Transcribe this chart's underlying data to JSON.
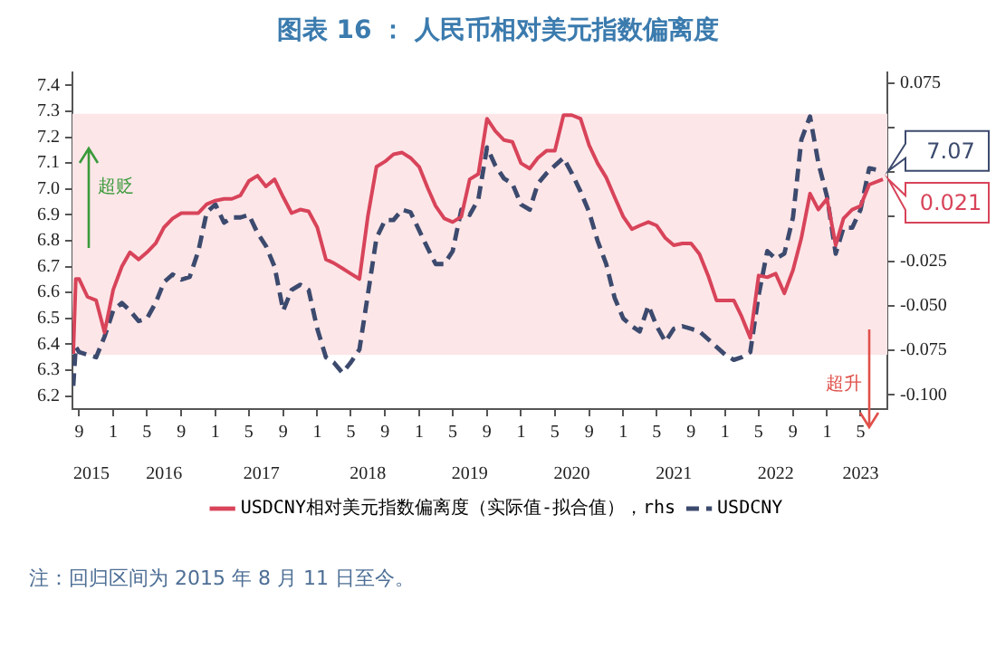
{
  "chart_data": {
    "type": "line",
    "title": "图表 16 ： 人民币相对美元指数偏离度",
    "x": [
      "2015-08-11",
      "2015-08-20",
      "2015-09",
      "2015-10",
      "2015-11",
      "2015-12",
      "2016-01",
      "2016-02",
      "2016-03",
      "2016-04",
      "2016-05",
      "2016-06",
      "2016-07",
      "2016-08",
      "2016-09",
      "2016-10",
      "2016-11",
      "2016-12",
      "2017-01",
      "2017-02",
      "2017-03",
      "2017-04",
      "2017-05",
      "2017-06",
      "2017-07",
      "2017-08",
      "2017-09",
      "2017-10",
      "2017-11",
      "2017-12",
      "2018-01",
      "2018-02",
      "2018-03",
      "2018-04",
      "2018-05",
      "2018-06",
      "2018-07",
      "2018-08",
      "2018-09",
      "2018-10",
      "2018-11",
      "2018-12",
      "2019-01",
      "2019-02",
      "2019-03",
      "2019-04",
      "2019-05",
      "2019-06",
      "2019-07",
      "2019-08",
      "2019-09",
      "2019-10",
      "2019-11",
      "2019-12",
      "2020-01",
      "2020-02",
      "2020-03",
      "2020-04",
      "2020-05",
      "2020-06",
      "2020-07",
      "2020-08",
      "2020-09",
      "2020-10",
      "2020-11",
      "2020-12",
      "2021-01",
      "2021-02",
      "2021-03",
      "2021-04",
      "2021-05",
      "2021-06",
      "2021-07",
      "2021-08",
      "2021-09",
      "2021-10",
      "2021-11",
      "2021-12",
      "2022-01",
      "2022-02",
      "2022-03",
      "2022-04",
      "2022-05",
      "2022-06",
      "2022-07",
      "2022-08",
      "2022-09",
      "2022-10",
      "2022-11",
      "2022-12",
      "2023-01",
      "2023-02",
      "2023-03",
      "2023-04",
      "2023-05",
      "2023-06",
      "2023-07-20"
    ],
    "series": [
      {
        "name": "USDCNY相对美元指数偏离度（实际值-拟合值），rhs",
        "color": "#d8445a",
        "axis": "y2",
        "line_style": "solid",
        "values": [
          -0.077,
          -0.035,
          -0.035,
          -0.045,
          -0.047,
          -0.065,
          -0.041,
          -0.028,
          -0.02,
          -0.024,
          -0.02,
          -0.015,
          -0.006,
          -0.001,
          0.002,
          0.002,
          0.002,
          0.007,
          0.009,
          0.01,
          0.01,
          0.012,
          0.02,
          0.023,
          0.017,
          0.021,
          0.011,
          0.002,
          0.004,
          0.003,
          -0.006,
          -0.024,
          -0.026,
          -0.029,
          -0.032,
          -0.035,
          0.0,
          0.028,
          0.031,
          0.035,
          0.036,
          0.033,
          0.028,
          0.016,
          0.006,
          -0.001,
          -0.003,
          0.0,
          0.021,
          0.024,
          0.055,
          0.048,
          0.043,
          0.042,
          0.03,
          0.027,
          0.033,
          0.037,
          0.037,
          0.057,
          0.057,
          0.055,
          0.04,
          0.03,
          0.022,
          0.011,
          0.0,
          -0.007,
          -0.005,
          -0.003,
          -0.005,
          -0.012,
          -0.016,
          -0.015,
          -0.015,
          -0.021,
          -0.033,
          -0.047,
          -0.047,
          -0.047,
          -0.056,
          -0.068,
          -0.033,
          -0.034,
          -0.032,
          -0.043,
          -0.03,
          -0.012,
          0.013,
          0.004,
          0.01,
          -0.016,
          -0.001,
          0.004,
          0.006,
          0.018,
          0.021
        ]
      },
      {
        "name": "USDCNY",
        "color": "#3c4a6e",
        "axis": "y",
        "line_style": "dashed",
        "values": [
          6.24,
          6.39,
          6.37,
          6.36,
          6.35,
          6.43,
          6.53,
          6.56,
          6.53,
          6.49,
          6.5,
          6.56,
          6.64,
          6.67,
          6.65,
          6.66,
          6.76,
          6.91,
          6.94,
          6.87,
          6.89,
          6.89,
          6.9,
          6.83,
          6.78,
          6.7,
          6.53,
          6.61,
          6.63,
          6.61,
          6.46,
          6.35,
          6.33,
          6.29,
          6.33,
          6.38,
          6.59,
          6.81,
          6.88,
          6.88,
          6.92,
          6.91,
          6.84,
          6.77,
          6.71,
          6.71,
          6.76,
          6.92,
          6.9,
          6.96,
          7.16,
          7.09,
          7.04,
          7.02,
          6.94,
          6.92,
          7.02,
          7.06,
          7.09,
          7.12,
          7.06,
          6.99,
          6.91,
          6.8,
          6.71,
          6.58,
          6.5,
          6.47,
          6.45,
          6.55,
          6.47,
          6.41,
          6.46,
          6.47,
          6.46,
          6.45,
          6.42,
          6.39,
          6.36,
          6.34,
          6.35,
          6.37,
          6.59,
          6.76,
          6.73,
          6.75,
          6.89,
          7.19,
          7.28,
          7.1,
          6.97,
          6.75,
          6.85,
          6.85,
          6.92,
          7.08,
          7.07
        ]
      }
    ],
    "xlim": [
      "2015-08-08",
      "2023-08-05"
    ],
    "xticks": [
      {
        "value": "2015-09",
        "label": "9"
      },
      {
        "value": "2016-01",
        "label": "1"
      },
      {
        "value": "2016-05",
        "label": "5"
      },
      {
        "value": "2016-09",
        "label": "9"
      },
      {
        "value": "2017-01",
        "label": "1"
      },
      {
        "value": "2017-05",
        "label": "5"
      },
      {
        "value": "2017-09",
        "label": "9"
      },
      {
        "value": "2018-01",
        "label": "1"
      },
      {
        "value": "2018-05",
        "label": "5"
      },
      {
        "value": "2018-09",
        "label": "9"
      },
      {
        "value": "2019-01",
        "label": "1"
      },
      {
        "value": "2019-05",
        "label": "5"
      },
      {
        "value": "2019-09",
        "label": "9"
      },
      {
        "value": "2020-01",
        "label": "1"
      },
      {
        "value": "2020-05",
        "label": "5"
      },
      {
        "value": "2020-09",
        "label": "9"
      },
      {
        "value": "2021-01",
        "label": "1"
      },
      {
        "value": "2021-05",
        "label": "5"
      },
      {
        "value": "2021-09",
        "label": "9"
      },
      {
        "value": "2022-01",
        "label": "1"
      },
      {
        "value": "2022-05",
        "label": "5"
      },
      {
        "value": "2022-09",
        "label": "9"
      },
      {
        "value": "2023-01",
        "label": "1"
      },
      {
        "value": "2023-05",
        "label": "5"
      }
    ],
    "x2lim": [
      "2015-08-08",
      "2023-08-05"
    ],
    "x2ticks": [
      {
        "value": "2015-10-15",
        "label": "2015"
      },
      {
        "value": "2016-07",
        "label": "2016"
      },
      {
        "value": "2017-06-15",
        "label": "2017"
      },
      {
        "value": "2018-07",
        "label": "2018"
      },
      {
        "value": "2019-07",
        "label": "2019"
      },
      {
        "value": "2020-07",
        "label": "2020"
      },
      {
        "value": "2021-07",
        "label": "2021"
      },
      {
        "value": "2022-07",
        "label": "2022"
      },
      {
        "value": "2023-05",
        "label": "2023"
      }
    ],
    "ylim": [
      6.15,
      7.45
    ],
    "yticks": [
      6.2,
      6.3,
      6.4,
      6.5,
      6.6,
      6.7,
      6.8,
      6.9,
      {
        "value": 7.0,
        "label": "7.0"
      },
      7.1,
      7.2,
      7.3,
      7.4
    ],
    "y2lim": [
      -0.108,
      0.081
    ],
    "y2ticks": [
      {
        "value": -0.1,
        "label": "-0.100"
      },
      {
        "value": -0.075,
        "label": "-0.075"
      },
      {
        "value": -0.05,
        "label": "-0.050"
      },
      {
        "value": -0.025,
        "label": "-0.025"
      },
      {
        "value": 0,
        "label": null
      },
      {
        "value": 0.025,
        "label": null
      },
      {
        "value": 0.05,
        "label": null
      },
      {
        "value": 0.075,
        "label": "0.075"
      }
    ],
    "bands": [
      {
        "axis": "y",
        "from": 6.36,
        "to": 7.29,
        "color": "#fde6e8"
      }
    ],
    "annotations": [
      "超贬",
      "超升",
      "7.07",
      "0.021",
      "注：回归区间为 2015 年 8 月 11 日至今。"
    ],
    "grid": false,
    "legend": "bottom",
    "marker": "none"
  }
}
